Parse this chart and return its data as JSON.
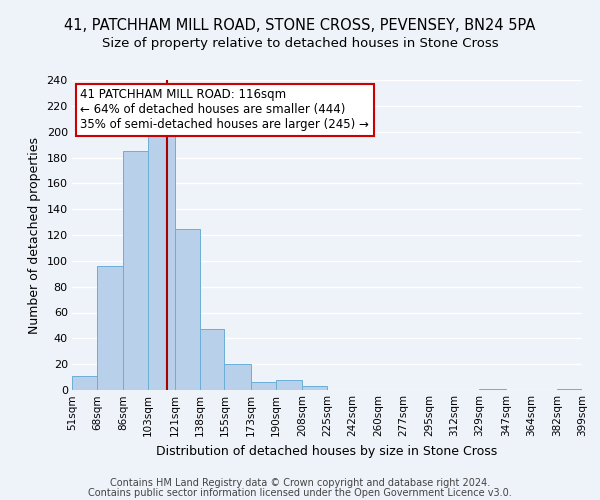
{
  "title": "41, PATCHHAM MILL ROAD, STONE CROSS, PEVENSEY, BN24 5PA",
  "subtitle": "Size of property relative to detached houses in Stone Cross",
  "xlabel": "Distribution of detached houses by size in Stone Cross",
  "ylabel": "Number of detached properties",
  "bar_edges": [
    51,
    68,
    86,
    103,
    121,
    138,
    155,
    173,
    190,
    208,
    225,
    242,
    260,
    277,
    295,
    312,
    329,
    347,
    364,
    382,
    399
  ],
  "bar_heights": [
    11,
    96,
    185,
    199,
    125,
    47,
    20,
    6,
    8,
    3,
    0,
    0,
    0,
    0,
    0,
    0,
    1,
    0,
    0,
    1
  ],
  "bar_color": "#b8d0ea",
  "bar_edge_color": "#6aaed6",
  "property_size": 116,
  "vline_color": "#aa0000",
  "annotation_line1": "41 PATCHHAM MILL ROAD: 116sqm",
  "annotation_line2": "← 64% of detached houses are smaller (444)",
  "annotation_line3": "35% of semi-detached houses are larger (245) →",
  "annotation_box_color": "#ffffff",
  "annotation_box_edge": "#cc0000",
  "ylim": [
    0,
    240
  ],
  "yticks": [
    0,
    20,
    40,
    60,
    80,
    100,
    120,
    140,
    160,
    180,
    200,
    220,
    240
  ],
  "tick_labels": [
    "51sqm",
    "68sqm",
    "86sqm",
    "103sqm",
    "121sqm",
    "138sqm",
    "155sqm",
    "173sqm",
    "190sqm",
    "208sqm",
    "225sqm",
    "242sqm",
    "260sqm",
    "277sqm",
    "295sqm",
    "312sqm",
    "329sqm",
    "347sqm",
    "364sqm",
    "382sqm",
    "399sqm"
  ],
  "footer_line1": "Contains HM Land Registry data © Crown copyright and database right 2024.",
  "footer_line2": "Contains public sector information licensed under the Open Government Licence v3.0.",
  "bg_color": "#eef2f9",
  "grid_color": "#ffffff",
  "title_fontsize": 10.5,
  "subtitle_fontsize": 9.5,
  "footer_fontsize": 7.0,
  "ylabel_fontsize": 9,
  "xlabel_fontsize": 9,
  "annotation_fontsize": 8.5
}
